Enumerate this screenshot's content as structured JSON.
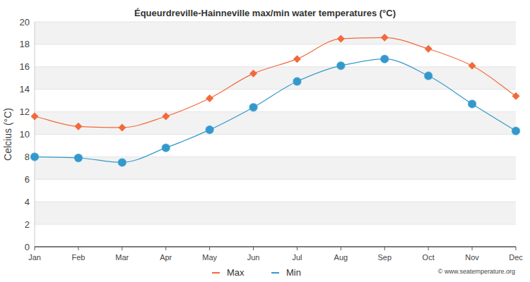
{
  "chart_data": {
    "type": "line",
    "title": "Équeurdreville-Hainneville max/min water temperatures (°C)",
    "y_label": "Celcius (°C)",
    "categories": [
      "Jan",
      "Feb",
      "Mar",
      "Apr",
      "May",
      "Jun",
      "Jul",
      "Aug",
      "Sep",
      "Oct",
      "Nov",
      "Dec"
    ],
    "series": [
      {
        "name": "Max",
        "color": "#f26a3c",
        "marker": "diamond",
        "values": [
          11.6,
          10.7,
          10.6,
          11.6,
          13.2,
          15.4,
          16.7,
          18.5,
          18.6,
          17.6,
          16.1,
          13.4
        ]
      },
      {
        "name": "Min",
        "color": "#3399cc",
        "marker": "circle",
        "values": [
          8.0,
          7.9,
          7.5,
          8.8,
          10.4,
          12.4,
          14.7,
          16.1,
          16.7,
          15.2,
          12.7,
          10.3
        ]
      }
    ],
    "ylim": [
      0,
      20
    ],
    "yticks": [
      0,
      2,
      4,
      6,
      8,
      10,
      12,
      14,
      16,
      18,
      20
    ],
    "grid": true,
    "legend": "bottom",
    "annotations": [
      "© www.seatemperature.org"
    ]
  }
}
